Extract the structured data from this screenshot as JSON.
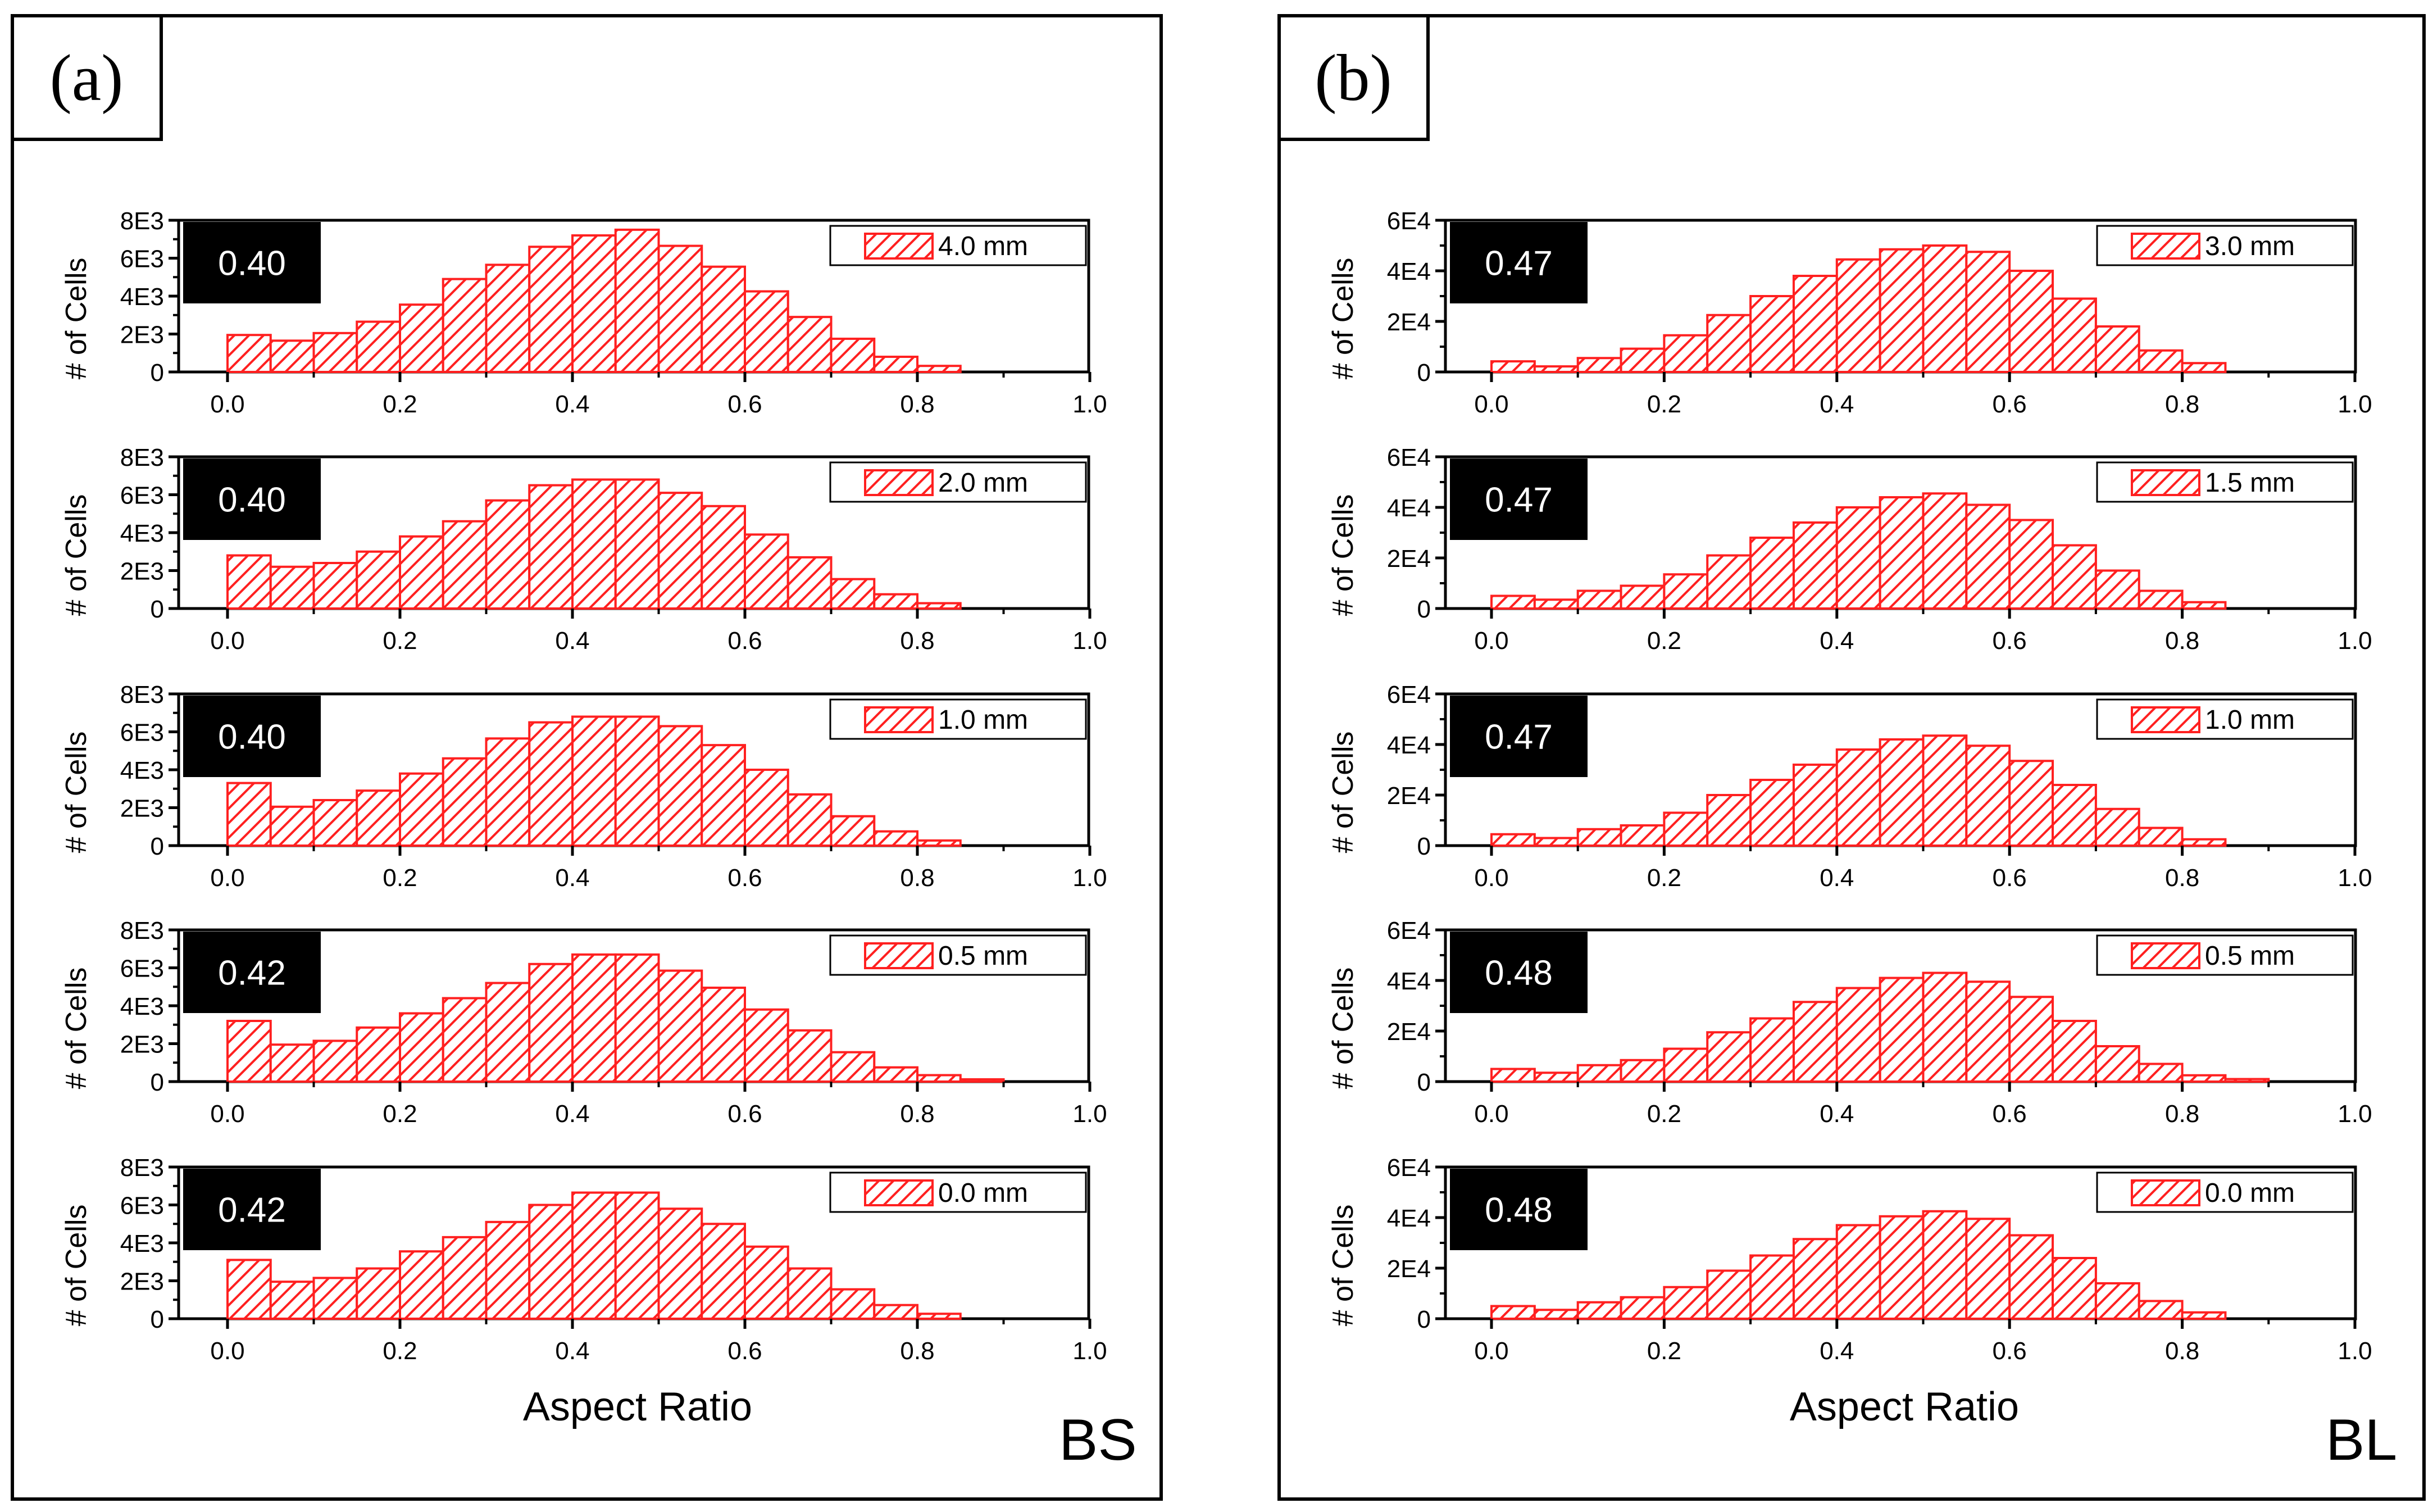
{
  "figure": {
    "bin_width": 0.05
  },
  "panels": [
    {
      "id": "a",
      "label": "(a)",
      "corner_label": "BS",
      "xlabel": "Aspect Ratio",
      "y_axis_title": "# of Cells",
      "y_ticks": [
        "0",
        "2E3",
        "4E3",
        "6E3",
        "8E3"
      ],
      "x_ticks": [
        "0.0",
        "0.2",
        "0.4",
        "0.6",
        "0.8",
        "1.0"
      ],
      "ymax": 8000,
      "ytick_step": 2000,
      "charts": [
        {
          "legend": "4.0 mm",
          "badge": "0.40",
          "values": [
            1950,
            1650,
            2050,
            2650,
            3550,
            4900,
            5650,
            6600,
            7200,
            7500,
            6650,
            5550,
            4250,
            2900,
            1750,
            800,
            320,
            0,
            0,
            0
          ]
        },
        {
          "legend": "2.0 mm",
          "badge": "0.40",
          "values": [
            2800,
            2200,
            2400,
            3000,
            3800,
            4600,
            5700,
            6500,
            6800,
            6800,
            6100,
            5400,
            3900,
            2700,
            1550,
            750,
            280,
            0,
            0,
            0
          ]
        },
        {
          "legend": "1.0 mm",
          "badge": "0.40",
          "values": [
            3300,
            2050,
            2400,
            2900,
            3800,
            4600,
            5650,
            6500,
            6800,
            6800,
            6300,
            5300,
            4000,
            2700,
            1550,
            750,
            270,
            0,
            0,
            0
          ]
        },
        {
          "legend": "0.5 mm",
          "badge": "0.42",
          "values": [
            3200,
            1950,
            2150,
            2850,
            3600,
            4400,
            5200,
            6200,
            6700,
            6700,
            5850,
            4950,
            3800,
            2700,
            1550,
            750,
            340,
            120,
            0,
            0
          ]
        },
        {
          "legend": "0.0 mm",
          "badge": "0.42",
          "values": [
            3100,
            1950,
            2150,
            2650,
            3550,
            4300,
            5100,
            6000,
            6650,
            6650,
            5800,
            5000,
            3800,
            2650,
            1550,
            720,
            260,
            0,
            0,
            0
          ]
        }
      ]
    },
    {
      "id": "b",
      "label": "(b)",
      "corner_label": "BL",
      "xlabel": "Aspect Ratio",
      "y_axis_title": "# of Cells",
      "y_ticks": [
        "0",
        "2E4",
        "4E4",
        "6E4"
      ],
      "x_ticks": [
        "0.0",
        "0.2",
        "0.4",
        "0.6",
        "0.8",
        "1.0"
      ],
      "ymax": 60000,
      "ytick_step": 20000,
      "charts": [
        {
          "legend": "3.0 mm",
          "badge": "0.47",
          "values": [
            4200,
            2200,
            5500,
            9200,
            14500,
            22500,
            30000,
            38000,
            44500,
            48500,
            50000,
            47500,
            40000,
            29000,
            18000,
            8500,
            3500,
            0,
            0,
            0
          ]
        },
        {
          "legend": "1.5 mm",
          "badge": "0.47",
          "values": [
            5000,
            3500,
            7000,
            9000,
            13500,
            21000,
            28000,
            34000,
            40000,
            44000,
            45500,
            41000,
            35000,
            25000,
            15000,
            7000,
            2500,
            0,
            0,
            0
          ]
        },
        {
          "legend": "1.0 mm",
          "badge": "0.47",
          "values": [
            4500,
            3000,
            6500,
            8000,
            13000,
            20000,
            26000,
            32000,
            38000,
            42000,
            43500,
            39500,
            33500,
            24000,
            14500,
            7000,
            2500,
            0,
            0,
            0
          ]
        },
        {
          "legend": "0.5 mm",
          "badge": "0.48",
          "values": [
            5000,
            3500,
            6500,
            8500,
            13000,
            19500,
            25000,
            31500,
            37000,
            41000,
            43000,
            39500,
            33500,
            24000,
            14000,
            7000,
            2500,
            1000,
            0,
            0
          ]
        },
        {
          "legend": "0.0 mm",
          "badge": "0.48",
          "values": [
            5000,
            3500,
            6500,
            8500,
            12500,
            19000,
            25000,
            31500,
            37000,
            40500,
            42500,
            39500,
            33000,
            24000,
            14000,
            7000,
            2500,
            0,
            0,
            0
          ]
        }
      ]
    }
  ],
  "chart_data": [
    {
      "type": "bar",
      "title": "(a) 4.0 mm",
      "xlabel": "Aspect Ratio",
      "ylabel": "# of Cells",
      "xlim": [
        0.0,
        1.0
      ],
      "ylim": [
        0,
        8000
      ],
      "bin_width": 0.05,
      "legend": "4.0 mm",
      "annotation": "0.40",
      "values": [
        1950,
        1650,
        2050,
        2650,
        3550,
        4900,
        5650,
        6600,
        7200,
        7500,
        6650,
        5550,
        4250,
        2900,
        1750,
        800,
        320,
        0,
        0,
        0
      ]
    },
    {
      "type": "bar",
      "title": "(a) 2.0 mm",
      "xlabel": "Aspect Ratio",
      "ylabel": "# of Cells",
      "xlim": [
        0.0,
        1.0
      ],
      "ylim": [
        0,
        8000
      ],
      "bin_width": 0.05,
      "legend": "2.0 mm",
      "annotation": "0.40",
      "values": [
        2800,
        2200,
        2400,
        3000,
        3800,
        4600,
        5700,
        6500,
        6800,
        6800,
        6100,
        5400,
        3900,
        2700,
        1550,
        750,
        280,
        0,
        0,
        0
      ]
    },
    {
      "type": "bar",
      "title": "(a) 1.0 mm",
      "xlabel": "Aspect Ratio",
      "ylabel": "# of Cells",
      "xlim": [
        0.0,
        1.0
      ],
      "ylim": [
        0,
        8000
      ],
      "bin_width": 0.05,
      "legend": "1.0 mm",
      "annotation": "0.40",
      "values": [
        3300,
        2050,
        2400,
        2900,
        3800,
        4600,
        5650,
        6500,
        6800,
        6800,
        6300,
        5300,
        4000,
        2700,
        1550,
        750,
        270,
        0,
        0,
        0
      ]
    },
    {
      "type": "bar",
      "title": "(a) 0.5 mm",
      "xlabel": "Aspect Ratio",
      "ylabel": "# of Cells",
      "xlim": [
        0.0,
        1.0
      ],
      "ylim": [
        0,
        8000
      ],
      "bin_width": 0.05,
      "legend": "0.5 mm",
      "annotation": "0.42",
      "values": [
        3200,
        1950,
        2150,
        2850,
        3600,
        4400,
        5200,
        6200,
        6700,
        6700,
        5850,
        4950,
        3800,
        2700,
        1550,
        750,
        340,
        120,
        0,
        0
      ]
    },
    {
      "type": "bar",
      "title": "(a) 0.0 mm",
      "xlabel": "Aspect Ratio",
      "ylabel": "# of Cells",
      "xlim": [
        0.0,
        1.0
      ],
      "ylim": [
        0,
        8000
      ],
      "bin_width": 0.05,
      "legend": "0.0 mm",
      "annotation": "0.42",
      "values": [
        3100,
        1950,
        2150,
        2650,
        3550,
        4300,
        5100,
        6000,
        6650,
        6650,
        5800,
        5000,
        3800,
        2650,
        1550,
        720,
        260,
        0,
        0,
        0
      ]
    },
    {
      "type": "bar",
      "title": "(b) 3.0 mm",
      "xlabel": "Aspect Ratio",
      "ylabel": "# of Cells",
      "xlim": [
        0.0,
        1.0
      ],
      "ylim": [
        0,
        60000
      ],
      "bin_width": 0.05,
      "legend": "3.0 mm",
      "annotation": "0.47",
      "values": [
        4200,
        2200,
        5500,
        9200,
        14500,
        22500,
        30000,
        38000,
        44500,
        48500,
        50000,
        47500,
        40000,
        29000,
        18000,
        8500,
        3500,
        0,
        0,
        0
      ]
    },
    {
      "type": "bar",
      "title": "(b) 1.5 mm",
      "xlabel": "Aspect Ratio",
      "ylabel": "# of Cells",
      "xlim": [
        0.0,
        1.0
      ],
      "ylim": [
        0,
        60000
      ],
      "bin_width": 0.05,
      "legend": "1.5 mm",
      "annotation": "0.47",
      "values": [
        5000,
        3500,
        7000,
        9000,
        13500,
        21000,
        28000,
        34000,
        40000,
        44000,
        45500,
        41000,
        35000,
        25000,
        15000,
        7000,
        2500,
        0,
        0,
        0
      ]
    },
    {
      "type": "bar",
      "title": "(b) 1.0 mm",
      "xlabel": "Aspect Ratio",
      "ylabel": "# of Cells",
      "xlim": [
        0.0,
        1.0
      ],
      "ylim": [
        0,
        60000
      ],
      "bin_width": 0.05,
      "legend": "1.0 mm",
      "annotation": "0.47",
      "values": [
        4500,
        3000,
        6500,
        8000,
        13000,
        20000,
        26000,
        32000,
        38000,
        42000,
        43500,
        39500,
        33500,
        24000,
        14500,
        7000,
        2500,
        0,
        0,
        0
      ]
    },
    {
      "type": "bar",
      "title": "(b) 0.5 mm",
      "xlabel": "Aspect Ratio",
      "ylabel": "# of Cells",
      "xlim": [
        0.0,
        1.0
      ],
      "ylim": [
        0,
        60000
      ],
      "bin_width": 0.05,
      "legend": "0.5 mm",
      "annotation": "0.48",
      "values": [
        5000,
        3500,
        6500,
        8500,
        13000,
        19500,
        25000,
        31500,
        37000,
        41000,
        43000,
        39500,
        33500,
        24000,
        14000,
        7000,
        2500,
        1000,
        0,
        0
      ]
    },
    {
      "type": "bar",
      "title": "(b) 0.0 mm",
      "xlabel": "Aspect Ratio",
      "ylabel": "# of Cells",
      "xlim": [
        0.0,
        1.0
      ],
      "ylim": [
        0,
        60000
      ],
      "bin_width": 0.05,
      "legend": "0.0 mm",
      "annotation": "0.48",
      "values": [
        5000,
        3500,
        6500,
        8500,
        12500,
        19000,
        25000,
        31500,
        37000,
        40500,
        42500,
        39500,
        33000,
        24000,
        14000,
        7000,
        2500,
        0,
        0,
        0
      ]
    }
  ],
  "colors": {
    "bar": "#ff2020",
    "axis": "#000000",
    "badge_bg": "#000000",
    "badge_text": "#ffffff"
  }
}
